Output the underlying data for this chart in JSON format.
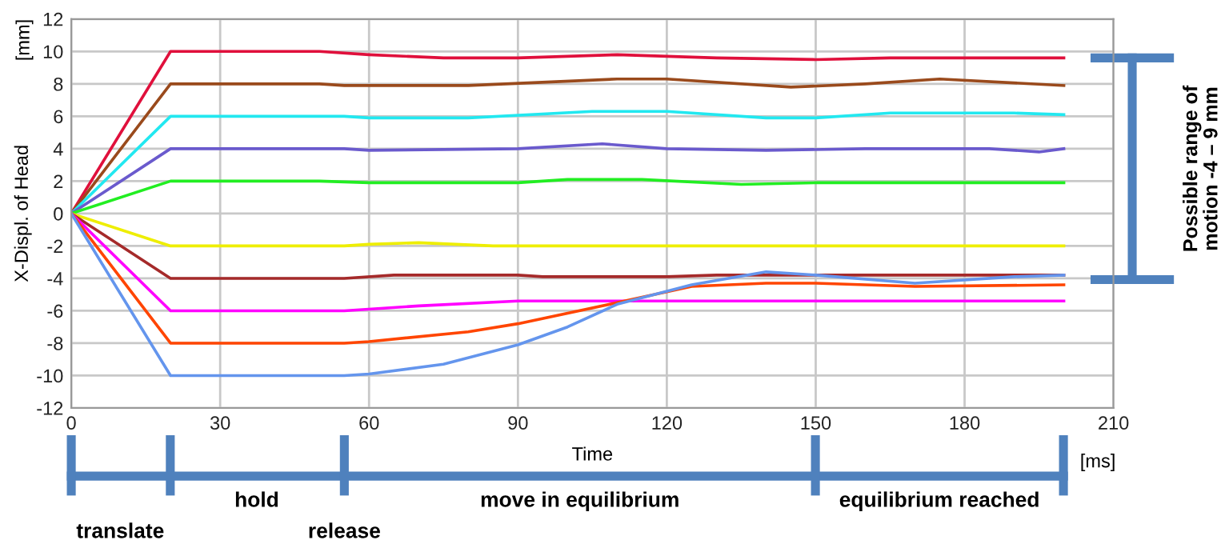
{
  "chart_data": {
    "type": "line",
    "xlabel": "Time",
    "ylabel": "X-Displ. of Head",
    "annotations": [
      "[mm]",
      "[ms]",
      "Possible range of\nmotion -4 – 9 mm",
      "translate",
      "hold",
      "release",
      "move in equilibrium",
      "equilibrium reached"
    ],
    "xlim": [
      0,
      210
    ],
    "xticks": [
      0,
      30,
      60,
      90,
      120,
      150,
      180,
      210
    ],
    "ylim": [
      -12,
      12
    ],
    "yticks": [
      -12,
      -10,
      -8,
      -6,
      -4,
      -2,
      0,
      2,
      4,
      6,
      8,
      10,
      12
    ],
    "grid": true,
    "marker": "none",
    "line_style": "solid",
    "series": [
      {
        "color": "#e0103c",
        "x": [
          0,
          20,
          50,
          60,
          75,
          90,
          110,
          130,
          150,
          165,
          190,
          200
        ],
        "values": [
          0,
          10,
          10,
          9.8,
          9.6,
          9.6,
          9.8,
          9.6,
          9.5,
          9.6,
          9.6,
          9.6
        ]
      },
      {
        "color": "#9a4a1c",
        "x": [
          0,
          20,
          50,
          55,
          80,
          110,
          120,
          145,
          160,
          175,
          200
        ],
        "values": [
          0,
          8,
          8,
          7.9,
          7.9,
          8.3,
          8.3,
          7.8,
          8.0,
          8.3,
          7.9
        ]
      },
      {
        "color": "#22e8f0",
        "x": [
          0,
          20,
          55,
          60,
          80,
          105,
          120,
          140,
          150,
          165,
          190,
          200
        ],
        "values": [
          0,
          6,
          6,
          5.9,
          5.9,
          6.3,
          6.3,
          5.9,
          5.9,
          6.2,
          6.2,
          6.1
        ]
      },
      {
        "color": "#6a5acd",
        "x": [
          0,
          20,
          55,
          60,
          90,
          107,
          120,
          140,
          160,
          185,
          195,
          200
        ],
        "values": [
          0,
          4,
          4,
          3.9,
          4.0,
          4.3,
          4.0,
          3.9,
          4.0,
          4.0,
          3.8,
          4.0
        ]
      },
      {
        "color": "#22ee22",
        "x": [
          0,
          20,
          50,
          60,
          90,
          100,
          115,
          135,
          150,
          200
        ],
        "values": [
          0,
          2,
          2,
          1.9,
          1.9,
          2.1,
          2.1,
          1.8,
          1.9,
          1.9
        ]
      },
      {
        "color": "#eeee00",
        "x": [
          0,
          20,
          55,
          60,
          70,
          85,
          200
        ],
        "values": [
          0,
          -2,
          -2,
          -1.9,
          -1.8,
          -2.0,
          -2.0
        ]
      },
      {
        "color": "#a52a2a",
        "x": [
          0,
          20,
          55,
          65,
          90,
          95,
          120,
          130,
          200
        ],
        "values": [
          0,
          -4,
          -4,
          -3.8,
          -3.8,
          -3.9,
          -3.9,
          -3.8,
          -3.8
        ]
      },
      {
        "color": "#ff00ff",
        "x": [
          0,
          20,
          55,
          70,
          90,
          120,
          200
        ],
        "values": [
          0,
          -6,
          -6,
          -5.7,
          -5.4,
          -5.4,
          -5.4
        ]
      },
      {
        "color": "#ff4500",
        "x": [
          0,
          20,
          55,
          60,
          80,
          90,
          110,
          125,
          140,
          150,
          170,
          200
        ],
        "values": [
          0,
          -8,
          -8,
          -7.9,
          -7.3,
          -6.8,
          -5.5,
          -4.5,
          -4.3,
          -4.3,
          -4.5,
          -4.4
        ]
      },
      {
        "color": "#6495ed",
        "x": [
          0,
          20,
          55,
          60,
          75,
          90,
          100,
          110,
          125,
          140,
          150,
          170,
          190,
          200
        ],
        "values": [
          0,
          -10,
          -10,
          -9.9,
          -9.3,
          -8.1,
          -7.0,
          -5.6,
          -4.4,
          -3.6,
          -3.8,
          -4.3,
          -3.9,
          -3.8
        ]
      }
    ]
  }
}
